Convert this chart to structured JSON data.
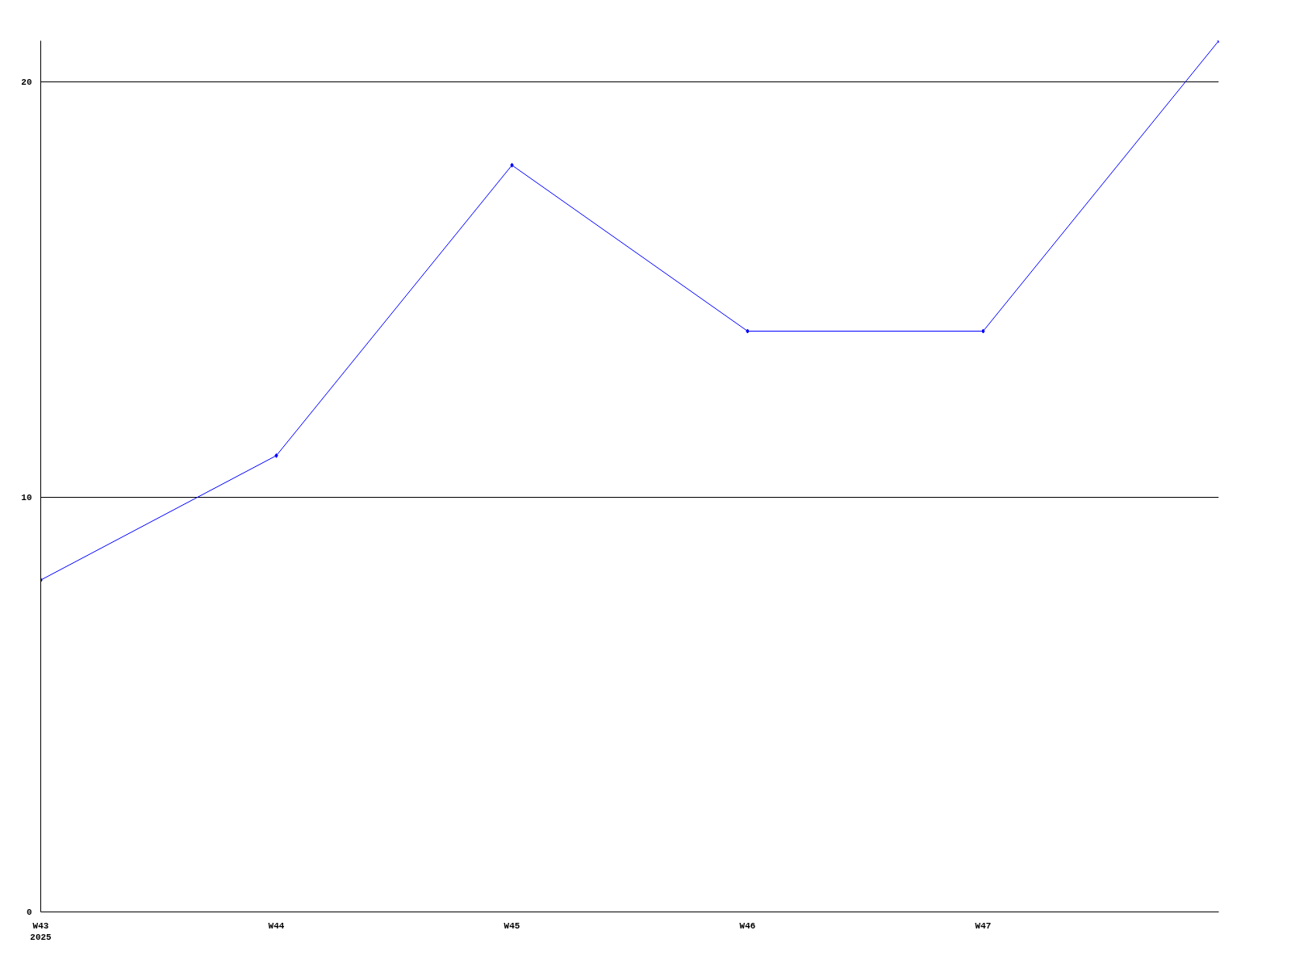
{
  "chart_data": {
    "type": "line",
    "categories": [
      "W43\n2025",
      "W44",
      "W45",
      "W46",
      "W47",
      null
    ],
    "series": [
      {
        "color": "#0000ff",
        "values": [
          8,
          11,
          18,
          14,
          14,
          21
        ]
      }
    ],
    "ylim": [
      0,
      21
    ],
    "yticks": [
      0,
      10,
      20
    ],
    "grid": "y",
    "marker": "diamond",
    "line_style": "solid"
  }
}
